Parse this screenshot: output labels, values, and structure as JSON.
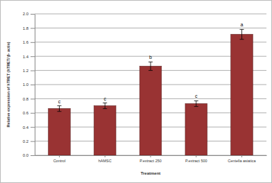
{
  "chart_data": {
    "type": "bar",
    "x_label": "Treatment",
    "y_label": "Relative expression of hTRET (hTRET/ β- actin)",
    "categories": [
      "Control",
      "hAMSC",
      "P.extract 250",
      "P.extract 500",
      "Centella asiatica"
    ],
    "values": [
      0.66,
      0.7,
      1.26,
      0.73,
      1.71
    ],
    "errors": [
      0.04,
      0.04,
      0.06,
      0.04,
      0.07
    ],
    "annotations": [
      "c",
      "c",
      "b",
      "c",
      "a"
    ],
    "color": "#993333",
    "ylim": [
      0,
      2.0
    ],
    "yticks": [
      {
        "value": 0,
        "label": "0.0"
      },
      {
        "value": 0.2,
        "label": "0.2"
      },
      {
        "value": 0.4,
        "label": "0.4"
      },
      {
        "value": 0.6,
        "label": "0.6"
      },
      {
        "value": 0.8,
        "label": "0.8"
      },
      {
        "value": 1.0,
        "label": "1.0"
      },
      {
        "value": 1.2,
        "label": "1.2"
      },
      {
        "value": 1.4,
        "label": "1.4"
      },
      {
        "value": 1.6,
        "label": "1.6"
      },
      {
        "value": 1.8,
        "label": "1.8"
      },
      {
        "value": 2.0,
        "label": "2.0"
      }
    ],
    "grid": true
  }
}
